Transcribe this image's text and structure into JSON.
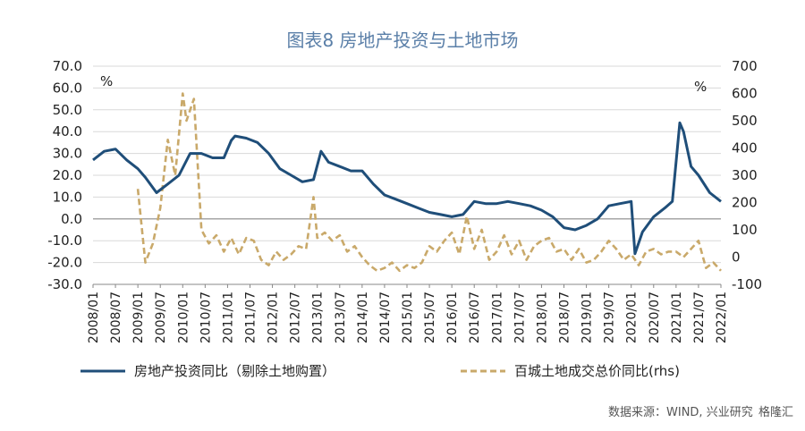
{
  "chart_data": {
    "type": "line",
    "title": "图表8 房地产投资与土地市场",
    "left_unit": "%",
    "right_unit": "%",
    "ylim_left": [
      -30,
      70
    ],
    "ylim_right": [
      -100,
      700
    ],
    "yticks_left": [
      "70.0",
      "60.0",
      "50.0",
      "40.0",
      "30.0",
      "20.0",
      "10.0",
      "0.0",
      "-10.0",
      "-20.0",
      "-30.0"
    ],
    "yticks_right": [
      "700",
      "600",
      "500",
      "400",
      "300",
      "200",
      "100",
      "0",
      "-100"
    ],
    "xticks": [
      "2008/01",
      "2008/07",
      "2009/01",
      "2009/07",
      "2010/01",
      "2010/07",
      "2011/01",
      "2011/07",
      "2012/01",
      "2012/07",
      "2013/01",
      "2013/07",
      "2014/01",
      "2014/07",
      "2015/01",
      "2015/07",
      "2016/01",
      "2016/07",
      "2017/01",
      "2017/07",
      "2018/01",
      "2018/07",
      "2019/01",
      "2019/07",
      "2020/01",
      "2020/07",
      "2021/01",
      "2021/07",
      "2022/01"
    ],
    "legend": [
      "房地产投资同比（剔除土地购置）",
      "百城土地成交总价同比(rhs)"
    ],
    "source": "数据来源：WIND, 兴业研究",
    "watermark": "格隆汇",
    "colors": {
      "investment": "#1f4e79",
      "land": "#c9a96a"
    },
    "series": [
      {
        "name": "房地产投资同比（剔除土地购置）",
        "axis": "left",
        "style": "solid",
        "x": [
          "2008/01",
          "2008/04",
          "2008/07",
          "2008/10",
          "2009/01",
          "2009/03",
          "2009/06",
          "2009/09",
          "2009/12",
          "2010/03",
          "2010/06",
          "2010/09",
          "2010/12",
          "2011/02",
          "2011/03",
          "2011/06",
          "2011/09",
          "2011/12",
          "2012/03",
          "2012/06",
          "2012/09",
          "2012/12",
          "2013/02",
          "2013/04",
          "2013/07",
          "2013/10",
          "2014/01",
          "2014/04",
          "2014/07",
          "2014/10",
          "2015/01",
          "2015/04",
          "2015/07",
          "2015/10",
          "2016/01",
          "2016/04",
          "2016/07",
          "2016/10",
          "2017/01",
          "2017/04",
          "2017/07",
          "2017/10",
          "2018/01",
          "2018/04",
          "2018/07",
          "2018/10",
          "2019/01",
          "2019/04",
          "2019/07",
          "2019/10",
          "2020/01",
          "2020/02",
          "2020/04",
          "2020/07",
          "2020/10",
          "2020/12",
          "2021/02",
          "2021/03",
          "2021/05",
          "2021/07",
          "2021/10",
          "2022/01"
        ],
        "y": [
          27,
          31,
          32,
          27,
          23,
          19,
          12,
          16,
          20,
          30,
          30,
          28,
          28,
          36,
          38,
          37,
          35,
          30,
          23,
          20,
          17,
          18,
          31,
          26,
          24,
          22,
          22,
          16,
          11,
          9,
          7,
          5,
          3,
          2,
          1,
          2,
          8,
          7,
          7,
          8,
          7,
          6,
          4,
          1,
          -4,
          -5,
          -3,
          0,
          6,
          7,
          8,
          -16,
          -6,
          1,
          5,
          8,
          44,
          40,
          24,
          20,
          12,
          8
        ]
      },
      {
        "name": "百城土地成交总价同比(rhs)",
        "axis": "right",
        "style": "dashed",
        "x": [
          "2008/01",
          "2008/04",
          "2008/07",
          "2008/10",
          "2009/01",
          "2009/03",
          "2009/05",
          "2009/07",
          "2009/09",
          "2009/11",
          "2010/01",
          "2010/02",
          "2010/04",
          "2010/06",
          "2010/08",
          "2010/10",
          "2010/12",
          "2011/02",
          "2011/04",
          "2011/06",
          "2011/08",
          "2011/10",
          "2011/12",
          "2012/02",
          "2012/04",
          "2012/06",
          "2012/08",
          "2012/10",
          "2012/12",
          "2013/01",
          "2013/03",
          "2013/05",
          "2013/07",
          "2013/09",
          "2013/11",
          "2014/01",
          "2014/03",
          "2014/05",
          "2014/07",
          "2014/09",
          "2014/11",
          "2015/01",
          "2015/03",
          "2015/05",
          "2015/07",
          "2015/09",
          "2015/11",
          "2016/01",
          "2016/03",
          "2016/05",
          "2016/07",
          "2016/09",
          "2016/11",
          "2017/01",
          "2017/03",
          "2017/05",
          "2017/07",
          "2017/09",
          "2017/11",
          "2018/01",
          "2018/03",
          "2018/05",
          "2018/07",
          "2018/09",
          "2018/11",
          "2019/01",
          "2019/03",
          "2019/05",
          "2019/07",
          "2019/09",
          "2019/11",
          "2020/01",
          "2020/03",
          "2020/05",
          "2020/07",
          "2020/09",
          "2020/11",
          "2021/01",
          "2021/03",
          "2021/05",
          "2021/07",
          "2021/09",
          "2021/11",
          "2022/01"
        ],
        "y": [
          null,
          null,
          null,
          null,
          250,
          -20,
          50,
          180,
          430,
          300,
          600,
          500,
          580,
          100,
          50,
          80,
          20,
          70,
          10,
          70,
          60,
          -10,
          -30,
          20,
          -10,
          10,
          40,
          30,
          220,
          70,
          90,
          60,
          80,
          20,
          40,
          0,
          -30,
          -50,
          -40,
          -20,
          -50,
          -30,
          -40,
          -20,
          40,
          20,
          60,
          90,
          10,
          150,
          30,
          100,
          -10,
          20,
          80,
          10,
          60,
          -10,
          40,
          60,
          70,
          20,
          30,
          -10,
          30,
          -20,
          -10,
          20,
          60,
          30,
          -10,
          10,
          -30,
          20,
          30,
          10,
          20,
          20,
          0,
          30,
          60,
          -40,
          -20,
          -50
        ]
      }
    ]
  }
}
